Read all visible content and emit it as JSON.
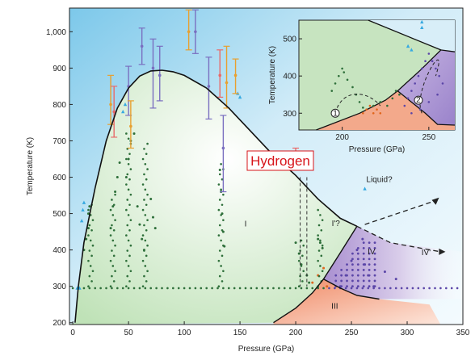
{
  "chart_data": {
    "type": "scatter",
    "title": "",
    "callout": "Hydrogen",
    "xlabel": "Pressure (GPa)",
    "ylabel": "Temperature (K)",
    "xlim": [
      -3,
      350
    ],
    "ylim": [
      195,
      1065
    ],
    "xticks": [
      0,
      50,
      100,
      150,
      200,
      250,
      300,
      350
    ],
    "yticks": [
      200,
      300,
      400,
      500,
      600,
      700,
      800,
      900,
      1000
    ],
    "ytick_labels": [
      "200",
      "300",
      "400",
      "500",
      "600",
      "700",
      "800",
      "900",
      "1,000"
    ],
    "grid": false,
    "legend": "none",
    "colors": {
      "liquid_bg": "#a9d8ef",
      "solid_I": "#cfe8c7",
      "phase_III": "#f29f80",
      "phase_IV": "#b9a2d6",
      "dots_green": "#2e6f3a",
      "dots_purple": "#5b46a8",
      "dots_orange": "#e0661d",
      "dots_blue": "#36a9e1",
      "boundary": "#111111"
    },
    "phase_labels": [
      {
        "text": "I",
        "x": 155,
        "y": 465
      },
      {
        "text": "I'?",
        "x": 236,
        "y": 466
      },
      {
        "text": "Liquid?",
        "x": 275,
        "y": 587
      },
      {
        "text": "IV",
        "x": 268,
        "y": 388
      },
      {
        "text": "IV'",
        "x": 317,
        "y": 386
      },
      {
        "text": "III",
        "x": 235,
        "y": 238
      }
    ],
    "melting_curve": [
      [
        2,
        200
      ],
      [
        5,
        300
      ],
      [
        10,
        420
      ],
      [
        20,
        570
      ],
      [
        30,
        700
      ],
      [
        40,
        790
      ],
      [
        50,
        845
      ],
      [
        60,
        878
      ],
      [
        70,
        892
      ],
      [
        80,
        894
      ],
      [
        90,
        890
      ],
      [
        100,
        880
      ],
      [
        120,
        845
      ],
      [
        140,
        790
      ],
      [
        160,
        725
      ],
      [
        180,
        660
      ],
      [
        200,
        605
      ],
      [
        220,
        540
      ],
      [
        240,
        487
      ],
      [
        255,
        465
      ]
    ],
    "liquid_boundary_extrapolated": [
      [
        255,
        465
      ],
      [
        285,
        420
      ],
      [
        330,
        395
      ]
    ],
    "liquid_arrow": [
      [
        262,
        470
      ],
      [
        325,
        535
      ]
    ],
    "boundary_I_III": [
      [
        180,
        200
      ],
      [
        200,
        240
      ],
      [
        215,
        282
      ],
      [
        225,
        320
      ],
      [
        240,
        392
      ],
      [
        255,
        465
      ]
    ],
    "boundary_III_IV": [
      [
        225,
        320
      ],
      [
        240,
        295
      ],
      [
        255,
        275
      ],
      [
        275,
        265
      ]
    ],
    "error_bars": [
      {
        "x": 34,
        "y": 800,
        "low": 745,
        "high": 880,
        "color": "#e8a030"
      },
      {
        "x": 37,
        "y": 780,
        "low": 710,
        "high": 850,
        "color": "#e86a6a"
      },
      {
        "x": 50,
        "y": 850,
        "low": 770,
        "high": 905,
        "color": "#7a6fc0"
      },
      {
        "x": 52,
        "y": 740,
        "low": 680,
        "high": 810,
        "color": "#e8a030"
      },
      {
        "x": 62,
        "y": 960,
        "low": 910,
        "high": 1010,
        "color": "#7a6fc0"
      },
      {
        "x": 72,
        "y": 900,
        "low": 790,
        "high": 980,
        "color": "#7a6fc0"
      },
      {
        "x": 78,
        "y": 880,
        "low": 810,
        "high": 960,
        "color": "#7a6fc0"
      },
      {
        "x": 104,
        "y": 1000,
        "low": 950,
        "high": 1060,
        "color": "#e8a030"
      },
      {
        "x": 110,
        "y": 1000,
        "low": 940,
        "high": 1060,
        "color": "#7a6fc0"
      },
      {
        "x": 122,
        "y": 850,
        "low": 760,
        "high": 930,
        "color": "#7a6fc0"
      },
      {
        "x": 132,
        "y": 880,
        "low": 820,
        "high": 950,
        "color": "#e86a6a"
      },
      {
        "x": 138,
        "y": 860,
        "low": 790,
        "high": 960,
        "color": "#e8a030"
      },
      {
        "x": 135,
        "y": 680,
        "low": 560,
        "high": 770,
        "color": "#7a6fc0"
      },
      {
        "x": 146,
        "y": 880,
        "low": 830,
        "high": 925,
        "color": "#e8a030"
      },
      {
        "x": 200,
        "y": 650,
        "low": 620,
        "high": 680,
        "color": "#e86a6a"
      }
    ],
    "point_groups": [
      {
        "name": "",
        "color": "#2e6f3a",
        "points": [
          [
            10,
            400
          ],
          [
            12,
            430
          ],
          [
            14,
            460
          ],
          [
            14,
            500
          ],
          [
            15,
            520
          ],
          [
            34,
            460
          ],
          [
            36,
            520
          ],
          [
            38,
            560
          ],
          [
            40,
            600
          ],
          [
            42,
            640
          ],
          [
            48,
            600
          ],
          [
            50,
            650
          ],
          [
            52,
            700
          ],
          [
            55,
            720
          ],
          [
            58,
            520
          ],
          [
            60,
            470
          ],
          [
            62,
            430
          ],
          [
            64,
            400
          ],
          [
            70,
            540
          ],
          [
            72,
            490
          ],
          [
            74,
            460
          ],
          [
            132,
            620
          ],
          [
            133,
            560
          ],
          [
            134,
            500
          ],
          [
            135,
            450
          ],
          [
            136,
            410
          ],
          [
            200,
            420
          ],
          [
            203,
            390
          ],
          [
            205,
            360
          ],
          [
            210,
            330
          ],
          [
            212,
            310
          ],
          [
            220,
            430
          ],
          [
            222,
            420
          ],
          [
            224,
            405
          ]
        ]
      },
      {
        "name": "",
        "color": "#5b46a8",
        "points": [
          [
            240,
            300
          ],
          [
            245,
            330
          ],
          [
            250,
            370
          ],
          [
            255,
            400
          ],
          [
            260,
            430
          ],
          [
            262,
            360
          ],
          [
            265,
            330
          ],
          [
            270,
            300
          ],
          [
            280,
            340
          ],
          [
            290,
            320
          ]
        ]
      },
      {
        "name": "",
        "color": "#e0661d",
        "points": [
          [
            215,
            310
          ],
          [
            220,
            330
          ],
          [
            225,
            350
          ],
          [
            228,
            300
          ]
        ]
      }
    ],
    "dotted_isotherm_T": 295,
    "inset": {
      "xlabel": "Pressure (GPa)",
      "ylabel": "Temperature (K)",
      "xlim": [
        175,
        265
      ],
      "ylim": [
        255,
        550
      ],
      "xticks": [
        200,
        250
      ],
      "yticks": [
        300,
        400,
        500
      ],
      "markers": [
        "1",
        "2"
      ]
    }
  }
}
